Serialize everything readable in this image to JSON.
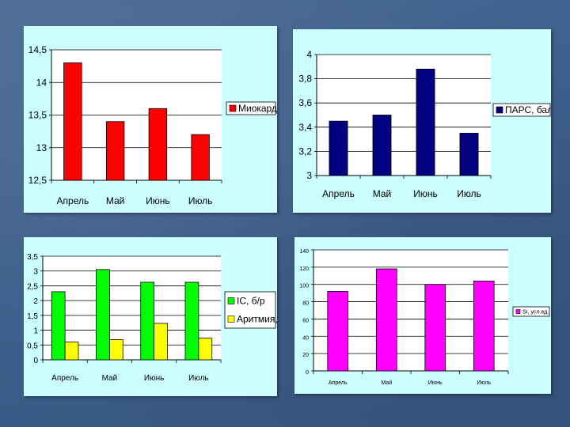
{
  "charts": [
    {
      "type": "bar",
      "categories": [
        "Апрель",
        "Май",
        "Июнь",
        "Июль"
      ],
      "series": [
        {
          "name": "Миокард, %",
          "values": [
            14.3,
            13.4,
            13.6,
            13.2
          ],
          "color": "#ff0000"
        }
      ],
      "ylim": [
        12.5,
        14.5
      ],
      "yticks": [
        "12,5",
        "13",
        "13,5",
        "14",
        "14,5"
      ],
      "legend": "right"
    },
    {
      "type": "bar",
      "categories": [
        "Апрель",
        "Май",
        "Июнь",
        "Июль"
      ],
      "series": [
        {
          "name": "ПАРС, баллы",
          "values": [
            3.45,
            3.5,
            3.88,
            3.35
          ],
          "color": "#000080"
        }
      ],
      "ylim": [
        3,
        4
      ],
      "yticks": [
        "3",
        "3,2",
        "3,4",
        "3,6",
        "3,8",
        "4"
      ],
      "legend": "right"
    },
    {
      "type": "bar",
      "categories": [
        "Апрель",
        "Май",
        "Июнь",
        "Июль"
      ],
      "series": [
        {
          "name": "IC, б/р",
          "values": [
            2.3,
            3.05,
            2.62,
            2.62
          ],
          "color": "#00ff00"
        },
        {
          "name": "Аритмия, %",
          "values": [
            0.6,
            0.68,
            1.23,
            0.73
          ],
          "color": "#ffff00"
        }
      ],
      "ylim": [
        0,
        3.5
      ],
      "yticks": [
        "0",
        "0,5",
        "1",
        "1,5",
        "2",
        "2,5",
        "3",
        "3,5"
      ],
      "legend": "right"
    },
    {
      "type": "bar",
      "categories": [
        "Апрель",
        "Май",
        "Июнь",
        "Июль"
      ],
      "series": [
        {
          "name": "SI, усл.ед.",
          "values": [
            92,
            118,
            100,
            104
          ],
          "color": "#ff00ff"
        }
      ],
      "ylim": [
        0,
        140
      ],
      "yticks": [
        "0",
        "20",
        "40",
        "60",
        "80",
        "100",
        "120",
        "140"
      ],
      "legend": "right"
    }
  ]
}
